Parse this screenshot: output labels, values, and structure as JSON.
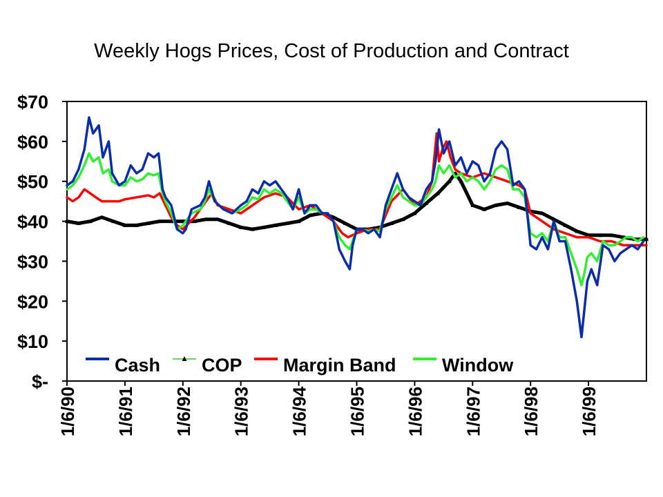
{
  "chart_data": {
    "type": "line",
    "title": "Weekly Hogs Prices, Cost of Production and Contract",
    "xlabel": "",
    "ylabel": "",
    "y_tick_labels": [
      "$-",
      "$10",
      "$20",
      "$30",
      "$40",
      "$50",
      "$60",
      "$70"
    ],
    "ylim": [
      0,
      70
    ],
    "x_tick_labels": [
      "1/6/90",
      "1/6/91",
      "1/6/92",
      "1/6/93",
      "1/6/94",
      "1/6/95",
      "1/6/96",
      "1/6/97",
      "1/6/98",
      "1/6/99"
    ],
    "xlim": [
      1990.0,
      2000.0
    ],
    "grid": false,
    "legend_position": "bottom-inside",
    "series": [
      {
        "name": "Cash",
        "color": "#0a2ea8",
        "x": [
          1990.0,
          1990.1,
          1990.2,
          1990.3,
          1990.38,
          1990.45,
          1990.55,
          1990.62,
          1990.72,
          1990.78,
          1990.9,
          1991.0,
          1991.1,
          1991.2,
          1991.3,
          1991.4,
          1991.5,
          1991.58,
          1991.65,
          1991.7,
          1991.8,
          1991.9,
          1992.0,
          1992.05,
          1992.15,
          1992.3,
          1992.38,
          1992.45,
          1992.55,
          1992.7,
          1992.85,
          1993.0,
          1993.1,
          1993.2,
          1993.3,
          1993.4,
          1993.5,
          1993.6,
          1993.7,
          1993.8,
          1993.9,
          1994.0,
          1994.1,
          1994.2,
          1994.3,
          1994.4,
          1994.5,
          1994.6,
          1994.7,
          1994.8,
          1994.88,
          1994.93,
          1995.0,
          1995.1,
          1995.2,
          1995.3,
          1995.4,
          1995.5,
          1995.6,
          1995.7,
          1995.8,
          1995.9,
          1996.0,
          1996.1,
          1996.2,
          1996.3,
          1996.36,
          1996.42,
          1996.5,
          1996.6,
          1996.7,
          1996.8,
          1996.9,
          1997.0,
          1997.1,
          1997.2,
          1997.3,
          1997.4,
          1997.5,
          1997.6,
          1997.7,
          1997.8,
          1997.9,
          1998.0,
          1998.1,
          1998.2,
          1998.3,
          1998.4,
          1998.5,
          1998.6,
          1998.7,
          1998.8,
          1998.88,
          1998.93,
          1998.98,
          1999.05,
          1999.15,
          1999.25,
          1999.35,
          1999.45,
          1999.55,
          1999.65,
          1999.75,
          1999.85,
          1999.95
        ],
        "y": [
          49,
          50,
          53,
          58,
          66,
          62,
          64,
          56,
          60,
          52,
          49,
          50,
          54,
          52,
          53,
          57,
          56,
          57,
          48,
          46,
          44,
          38,
          37,
          38,
          43,
          44,
          46,
          50,
          45,
          43,
          42,
          44,
          45,
          48,
          47,
          50,
          49,
          50,
          48,
          46,
          43,
          48,
          42,
          44,
          44,
          42,
          42,
          40,
          33,
          30,
          28,
          34,
          38,
          38,
          37,
          38,
          36,
          44,
          48,
          52,
          48,
          46,
          45,
          44,
          48,
          50,
          55,
          63,
          57,
          60,
          54,
          56,
          52,
          55,
          54,
          50,
          52,
          58,
          60,
          58,
          49,
          50,
          48,
          34,
          33,
          36,
          33,
          40,
          35,
          35,
          28,
          20,
          11,
          18,
          25,
          28,
          24,
          34,
          33,
          30,
          32,
          33,
          34,
          33,
          35
        ]
      },
      {
        "name": "COP",
        "color": "#000000",
        "x": [
          1990.0,
          1990.2,
          1990.4,
          1990.6,
          1990.8,
          1991.0,
          1991.2,
          1991.4,
          1991.6,
          1991.8,
          1992.0,
          1992.2,
          1992.4,
          1992.6,
          1992.8,
          1993.0,
          1993.2,
          1993.4,
          1993.6,
          1993.8,
          1994.0,
          1994.2,
          1994.4,
          1994.6,
          1994.8,
          1995.0,
          1995.2,
          1995.4,
          1995.6,
          1995.8,
          1996.0,
          1996.2,
          1996.4,
          1996.6,
          1996.7,
          1996.8,
          1997.0,
          1997.2,
          1997.4,
          1997.6,
          1997.8,
          1998.0,
          1998.2,
          1998.4,
          1998.6,
          1998.8,
          1999.0,
          1999.2,
          1999.4,
          1999.6,
          1999.8,
          2000.0
        ],
        "y": [
          40,
          39.5,
          40,
          41,
          40,
          39,
          39,
          39.5,
          40,
          40,
          40,
          40,
          40.5,
          40.5,
          39.5,
          38.5,
          38,
          38.5,
          39,
          39.5,
          40,
          41.5,
          42,
          41,
          39.5,
          38,
          38,
          38.5,
          39.5,
          40.5,
          42,
          44.5,
          47,
          50,
          52,
          50,
          44,
          43,
          44,
          44.5,
          43.5,
          42.5,
          42,
          40.5,
          39,
          37.5,
          36.5,
          36.5,
          36.5,
          36,
          35.5,
          35.5
        ]
      },
      {
        "name": "Margin Band",
        "color": "#ff0000",
        "x": [
          1990.0,
          1990.1,
          1990.2,
          1990.3,
          1990.4,
          1990.5,
          1990.6,
          1990.7,
          1990.8,
          1990.9,
          1991.0,
          1991.2,
          1991.4,
          1991.5,
          1991.6,
          1991.7,
          1991.8,
          1991.9,
          1992.0,
          1992.2,
          1992.4,
          1992.5,
          1992.6,
          1992.8,
          1993.0,
          1993.2,
          1993.4,
          1993.6,
          1993.8,
          1994.0,
          1994.2,
          1994.4,
          1994.6,
          1994.75,
          1994.85,
          1995.0,
          1995.2,
          1995.4,
          1995.6,
          1995.8,
          1996.0,
          1996.2,
          1996.3,
          1996.38,
          1996.42,
          1996.48,
          1996.55,
          1996.62,
          1996.7,
          1996.8,
          1997.0,
          1997.2,
          1997.4,
          1997.6,
          1997.8,
          1997.9,
          1998.0,
          1998.2,
          1998.4,
          1998.6,
          1998.8,
          1999.0,
          1999.2,
          1999.4,
          1999.6,
          1999.8,
          2000.0
        ],
        "y": [
          46,
          45,
          46,
          48,
          47,
          46,
          45,
          45,
          45,
          45,
          45.5,
          46,
          46.5,
          46,
          47,
          44,
          41,
          39,
          38,
          41,
          45,
          47,
          44,
          43,
          42,
          44,
          46,
          47,
          46,
          43,
          44,
          42,
          40,
          37,
          36,
          37,
          38,
          38,
          45,
          48,
          44,
          46,
          50,
          62,
          55,
          58,
          60,
          56,
          53,
          52,
          51,
          52,
          51,
          50,
          49,
          48,
          42,
          40,
          38,
          37,
          36,
          36,
          35,
          35,
          34,
          34,
          34
        ]
      },
      {
        "name": "Window",
        "color": "#33ee33",
        "x": [
          1990.0,
          1990.1,
          1990.2,
          1990.3,
          1990.38,
          1990.45,
          1990.55,
          1990.62,
          1990.72,
          1990.78,
          1990.9,
          1991.0,
          1991.1,
          1991.2,
          1991.3,
          1991.4,
          1991.5,
          1991.58,
          1991.65,
          1991.7,
          1991.8,
          1991.9,
          1992.0,
          1992.05,
          1992.15,
          1992.3,
          1992.38,
          1992.45,
          1992.55,
          1992.7,
          1992.85,
          1993.0,
          1993.1,
          1993.2,
          1993.3,
          1993.4,
          1993.5,
          1993.6,
          1993.7,
          1993.8,
          1993.9,
          1994.0,
          1994.1,
          1994.2,
          1994.3,
          1994.4,
          1994.5,
          1994.6,
          1994.7,
          1994.8,
          1994.88,
          1994.93,
          1995.0,
          1995.1,
          1995.2,
          1995.3,
          1995.4,
          1995.5,
          1995.6,
          1995.7,
          1995.8,
          1995.9,
          1996.0,
          1996.1,
          1996.2,
          1996.3,
          1996.36,
          1996.42,
          1996.5,
          1996.6,
          1996.7,
          1996.8,
          1996.9,
          1997.0,
          1997.1,
          1997.2,
          1997.3,
          1997.4,
          1997.5,
          1997.6,
          1997.7,
          1997.8,
          1997.9,
          1998.0,
          1998.1,
          1998.2,
          1998.3,
          1998.4,
          1998.5,
          1998.6,
          1998.7,
          1998.8,
          1998.88,
          1998.93,
          1998.98,
          1999.05,
          1999.15,
          1999.25,
          1999.35,
          1999.45,
          1999.55,
          1999.65,
          1999.75,
          1999.85,
          1999.95
        ],
        "y": [
          48,
          49,
          51,
          54,
          57,
          55,
          56,
          52,
          53,
          50,
          49,
          49,
          51,
          50,
          50.5,
          52,
          51.5,
          52,
          47,
          45,
          42,
          38,
          39,
          40,
          42,
          43,
          45,
          48,
          45,
          43,
          42,
          43,
          44,
          46,
          45.5,
          48,
          47,
          48,
          47,
          45,
          43,
          46,
          42,
          43,
          43,
          42,
          42,
          40,
          36,
          34,
          33,
          35,
          38,
          38,
          37.5,
          38,
          37.5,
          43,
          46,
          49,
          46,
          45,
          44,
          44,
          46,
          48,
          50,
          54,
          52,
          54,
          51,
          52,
          50,
          51,
          50,
          48,
          50,
          53,
          54,
          53,
          48,
          48,
          46,
          37,
          36,
          37,
          35,
          40,
          36,
          36,
          32,
          28,
          24,
          27,
          31,
          32,
          30,
          35,
          34,
          34,
          35,
          36,
          36,
          35,
          36
        ]
      }
    ]
  }
}
